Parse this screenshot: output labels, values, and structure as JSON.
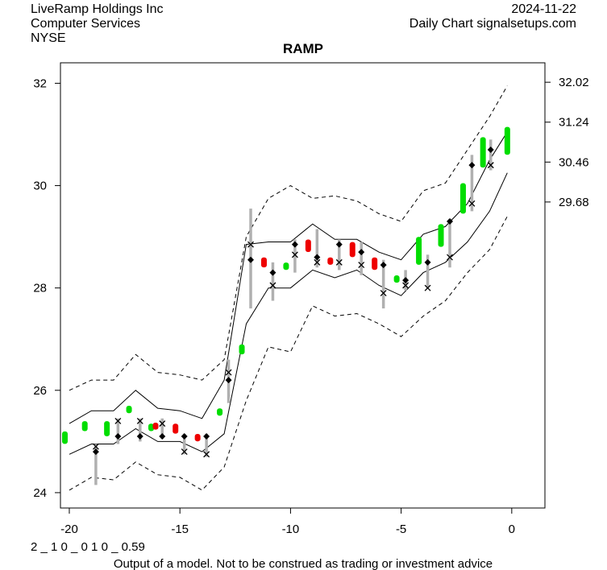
{
  "header": {
    "company": "LiveRamp Holdings Inc",
    "sector": "Computer Services",
    "exchange": "NYSE",
    "date": "2024-11-22",
    "source": "Daily Chart signalsetups.com"
  },
  "footer": {
    "code": "2 _ 1 0 _ 0 1 0 _ 0.59",
    "disclaimer": "Output of a model. Not to be construed as trading or investment advice"
  },
  "chart_data": {
    "type": "line",
    "title": "RAMP",
    "xlabel": "",
    "ylabel": "",
    "xlim": [
      -20.4,
      1.5
    ],
    "ylim": [
      23.7,
      32.4
    ],
    "x_ticks": [
      -20,
      -15,
      -10,
      -5,
      0
    ],
    "y_ticks_left": [
      24,
      26,
      28,
      30,
      32
    ],
    "y_ticks_right": [
      29.68,
      30.46,
      31.24,
      32.02
    ],
    "grid": false,
    "colors": {
      "up": "#00dd00",
      "down": "#ee0000",
      "range": "#b0b0b0",
      "band": "#000000",
      "marker": "#000000"
    },
    "bands": {
      "x": [
        -20,
        -19,
        -18,
        -17,
        -16,
        -15,
        -14,
        -13,
        -12,
        -11,
        -10,
        -9,
        -8,
        -7,
        -6,
        -5,
        -4,
        -3,
        -2,
        -1,
        -0.2
      ],
      "outer_upper": [
        26.0,
        26.2,
        26.2,
        26.7,
        26.35,
        26.3,
        26.2,
        26.6,
        29.0,
        29.75,
        30.0,
        29.75,
        29.8,
        29.7,
        29.45,
        29.3,
        29.9,
        30.05,
        30.7,
        31.35,
        31.95
      ],
      "inner_upper": [
        25.35,
        25.6,
        25.6,
        26.0,
        25.65,
        25.6,
        25.45,
        26.2,
        28.85,
        28.9,
        28.9,
        29.25,
        28.95,
        28.95,
        28.7,
        28.55,
        29.05,
        29.2,
        29.65,
        30.5,
        31.05
      ],
      "inner_lower": [
        24.75,
        24.95,
        24.95,
        25.25,
        25.0,
        25.0,
        24.8,
        25.15,
        27.3,
        28.0,
        28.0,
        28.35,
        28.2,
        28.35,
        28.05,
        27.85,
        28.3,
        28.5,
        28.9,
        29.5,
        30.25
      ],
      "outer_lower": [
        24.05,
        24.3,
        24.25,
        24.6,
        24.35,
        24.3,
        24.05,
        24.5,
        25.8,
        26.85,
        26.75,
        27.65,
        27.45,
        27.5,
        27.3,
        27.05,
        27.45,
        27.75,
        28.3,
        28.75,
        29.4
      ]
    },
    "candles": [
      {
        "x": -20.2,
        "low": 25.0,
        "high": 25.15,
        "open": 25.0,
        "close": 25.12,
        "color": "up"
      },
      {
        "x": -19.3,
        "low": 25.25,
        "high": 25.35,
        "open": 25.25,
        "close": 25.35,
        "color": "up"
      },
      {
        "x": -18.8,
        "low": 24.15,
        "high": 24.95,
        "open": 24.8,
        "close": 24.9,
        "color": "range"
      },
      {
        "x": -18.3,
        "low": 25.15,
        "high": 25.35,
        "open": 25.15,
        "close": 25.35,
        "color": "up"
      },
      {
        "x": -17.8,
        "low": 24.95,
        "high": 25.45,
        "open": 25.1,
        "close": 25.4,
        "color": "range"
      },
      {
        "x": -17.3,
        "low": 25.6,
        "high": 25.65,
        "open": 25.6,
        "close": 25.65,
        "color": "up"
      },
      {
        "x": -16.8,
        "low": 25.0,
        "high": 25.45,
        "open": 25.1,
        "close": 25.4,
        "color": "range"
      },
      {
        "x": -16.3,
        "low": 25.25,
        "high": 25.3,
        "open": 25.25,
        "close": 25.3,
        "color": "up"
      },
      {
        "x": -16.1,
        "low": 25.28,
        "high": 25.32,
        "open": 25.32,
        "close": 25.28,
        "color": "down"
      },
      {
        "x": -15.8,
        "low": 25.05,
        "high": 25.45,
        "open": 25.1,
        "close": 25.35,
        "color": "range"
      },
      {
        "x": -15.2,
        "low": 25.2,
        "high": 25.3,
        "open": 25.3,
        "close": 25.2,
        "color": "down"
      },
      {
        "x": -14.8,
        "low": 24.75,
        "high": 25.15,
        "open": 25.1,
        "close": 24.8,
        "color": "range"
      },
      {
        "x": -14.2,
        "low": 25.05,
        "high": 25.1,
        "open": 25.1,
        "close": 25.05,
        "color": "down"
      },
      {
        "x": -13.8,
        "low": 24.7,
        "high": 25.15,
        "open": 25.1,
        "close": 24.75,
        "color": "range"
      },
      {
        "x": -13.2,
        "low": 25.55,
        "high": 25.6,
        "open": 25.55,
        "close": 25.6,
        "color": "up"
      },
      {
        "x": -12.8,
        "low": 25.75,
        "high": 26.6,
        "open": 26.2,
        "close": 26.35,
        "color": "range"
      },
      {
        "x": -12.2,
        "low": 26.75,
        "high": 26.85,
        "open": 26.75,
        "close": 26.85,
        "color": "up"
      },
      {
        "x": -11.8,
        "low": 27.6,
        "high": 29.55,
        "open": 28.55,
        "close": 28.85,
        "color": "range"
      },
      {
        "x": -11.2,
        "low": 28.45,
        "high": 28.55,
        "open": 28.55,
        "close": 28.45,
        "color": "down"
      },
      {
        "x": -10.8,
        "low": 27.75,
        "high": 28.5,
        "open": 28.3,
        "close": 28.05,
        "color": "range"
      },
      {
        "x": -10.2,
        "low": 28.4,
        "high": 28.45,
        "open": 28.4,
        "close": 28.45,
        "color": "up"
      },
      {
        "x": -9.8,
        "low": 28.3,
        "high": 28.95,
        "open": 28.85,
        "close": 28.65,
        "color": "range"
      },
      {
        "x": -9.2,
        "low": 28.75,
        "high": 28.9,
        "open": 28.9,
        "close": 28.75,
        "color": "down"
      },
      {
        "x": -8.8,
        "low": 28.4,
        "high": 29.15,
        "open": 28.6,
        "close": 28.5,
        "color": "range"
      },
      {
        "x": -8.2,
        "low": 28.5,
        "high": 28.55,
        "open": 28.55,
        "close": 28.5,
        "color": "down"
      },
      {
        "x": -7.8,
        "low": 28.35,
        "high": 28.95,
        "open": 28.85,
        "close": 28.5,
        "color": "range"
      },
      {
        "x": -7.2,
        "low": 28.65,
        "high": 28.85,
        "open": 28.85,
        "close": 28.65,
        "color": "down"
      },
      {
        "x": -6.8,
        "low": 28.25,
        "high": 28.9,
        "open": 28.7,
        "close": 28.45,
        "color": "range"
      },
      {
        "x": -6.2,
        "low": 28.4,
        "high": 28.55,
        "open": 28.55,
        "close": 28.4,
        "color": "down"
      },
      {
        "x": -5.8,
        "low": 27.6,
        "high": 28.55,
        "open": 28.45,
        "close": 27.9,
        "color": "range"
      },
      {
        "x": -5.2,
        "low": 28.15,
        "high": 28.2,
        "open": 28.15,
        "close": 28.2,
        "color": "up"
      },
      {
        "x": -4.8,
        "low": 27.95,
        "high": 28.35,
        "open": 28.15,
        "close": 28.05,
        "color": "range"
      },
      {
        "x": -4.2,
        "low": 28.5,
        "high": 28.95,
        "open": 28.5,
        "close": 28.95,
        "color": "up"
      },
      {
        "x": -3.8,
        "low": 28.0,
        "high": 28.65,
        "open": 28.5,
        "close": 28.0,
        "color": "range"
      },
      {
        "x": -3.2,
        "low": 28.85,
        "high": 29.2,
        "open": 28.85,
        "close": 29.2,
        "color": "up"
      },
      {
        "x": -2.8,
        "low": 28.4,
        "high": 29.35,
        "open": 29.3,
        "close": 28.6,
        "color": "range"
      },
      {
        "x": -2.2,
        "low": 29.5,
        "high": 30.0,
        "open": 29.5,
        "close": 30.0,
        "color": "up"
      },
      {
        "x": -1.8,
        "low": 29.5,
        "high": 30.6,
        "open": 30.4,
        "close": 29.65,
        "color": "range"
      },
      {
        "x": -1.3,
        "low": 30.4,
        "high": 30.9,
        "open": 30.4,
        "close": 30.9,
        "color": "up"
      },
      {
        "x": -0.95,
        "low": 30.3,
        "high": 30.9,
        "open": 30.7,
        "close": 30.4,
        "color": "range"
      },
      {
        "x": -0.2,
        "low": 30.65,
        "high": 31.1,
        "open": 30.7,
        "close": 31.1,
        "color": "up"
      }
    ]
  }
}
